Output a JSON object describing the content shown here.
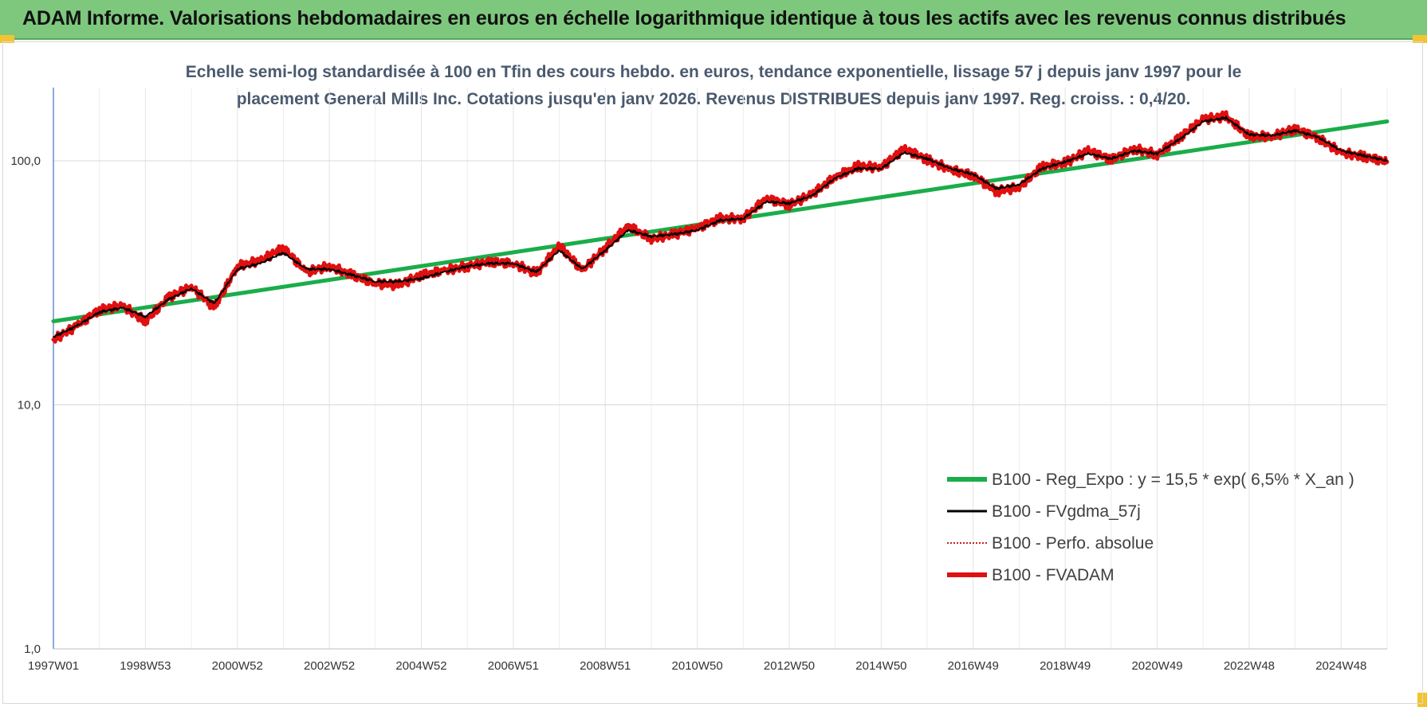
{
  "header": {
    "title": "ADAM Informe. Valorisations hebdomadaires en euros en échelle logarithmique identique à tous les actifs avec les revenus connus distribués"
  },
  "chart_data": {
    "type": "line",
    "title_line1": "Echelle semi-log standardisée à 100 en Tfin des cours hebdo. en euros, tendance exponentielle, lissage 57 j depuis janv 1997 pour le",
    "title_line2": "placement General Mills Inc. Cotations jusqu'en janv 2026. Revenus DISTRIBUES depuis janv 1997. Reg. croiss. : 0,4/20.",
    "y_scale": "log",
    "ylim": [
      1,
      190
    ],
    "y_ticks": [
      {
        "value": 100,
        "label": "100,0"
      },
      {
        "value": 10,
        "label": "10,0"
      },
      {
        "value": 1,
        "label": "1,0"
      }
    ],
    "xlim": [
      1997.0,
      2026.0
    ],
    "x_ticks": [
      {
        "value": 1997.0,
        "label": "1997W01"
      },
      {
        "value": 1999.0,
        "label": "1998W53"
      },
      {
        "value": 2001.0,
        "label": "2000W52"
      },
      {
        "value": 2003.0,
        "label": "2002W52"
      },
      {
        "value": 2005.0,
        "label": "2004W52"
      },
      {
        "value": 2007.0,
        "label": "2006W51"
      },
      {
        "value": 2009.0,
        "label": "2008W51"
      },
      {
        "value": 2011.0,
        "label": "2010W50"
      },
      {
        "value": 2013.0,
        "label": "2012W50"
      },
      {
        "value": 2015.0,
        "label": "2014W50"
      },
      {
        "value": 2017.0,
        "label": "2016W49"
      },
      {
        "value": 2019.0,
        "label": "2018W49"
      },
      {
        "value": 2021.0,
        "label": "2020W49"
      },
      {
        "value": 2023.0,
        "label": "2022W48"
      },
      {
        "value": 2025.0,
        "label": "2024W48"
      }
    ],
    "grid": true,
    "legend_position": "lower-right",
    "series": [
      {
        "name": "B100 - Reg_Expo : y = 15,5 * exp( 6,5% *  X_an )",
        "color": "#1aad4a",
        "style": "thick",
        "x": [
          1997.0,
          2026.0
        ],
        "y": [
          22,
          145
        ]
      },
      {
        "name": "B100 - FVgdma_57j",
        "color": "#000000",
        "style": "thin",
        "x": [
          1997.0,
          1997.5,
          1998.0,
          1998.5,
          1999.0,
          1999.5,
          2000.0,
          2000.5,
          2001.0,
          2001.5,
          2002.0,
          2002.5,
          2003.0,
          2003.5,
          2004.0,
          2004.5,
          2005.0,
          2005.5,
          2006.0,
          2006.5,
          2007.0,
          2007.5,
          2008.0,
          2008.5,
          2009.0,
          2009.5,
          2010.0,
          2010.5,
          2011.0,
          2011.5,
          2012.0,
          2012.5,
          2013.0,
          2013.5,
          2014.0,
          2014.5,
          2015.0,
          2015.5,
          2016.0,
          2016.5,
          2017.0,
          2017.5,
          2018.0,
          2018.5,
          2019.0,
          2019.5,
          2020.0,
          2020.5,
          2021.0,
          2021.5,
          2022.0,
          2022.5,
          2023.0,
          2023.5,
          2024.0,
          2024.5,
          2025.0,
          2025.5,
          2026.0
        ],
        "y": [
          19,
          21,
          24,
          25,
          23,
          27,
          30,
          26,
          36,
          38,
          42,
          36,
          36,
          34,
          32,
          32,
          33,
          35,
          37,
          38,
          38,
          35,
          43,
          36,
          43,
          52,
          49,
          50,
          52,
          57,
          58,
          68,
          67,
          72,
          85,
          93,
          93,
          108,
          102,
          93,
          88,
          77,
          80,
          93,
          99,
          107,
          102,
          110,
          107,
          123,
          145,
          150,
          128,
          127,
          133,
          125,
          110,
          105,
          100
        ]
      },
      {
        "name": "B100 - Perfo. absolue",
        "color": "#c00000",
        "style": "dotted",
        "x": [],
        "y": []
      },
      {
        "name": "B100 - FVADAM",
        "color": "#e01010",
        "style": "thick",
        "x": [
          1997.0,
          1997.5,
          1998.0,
          1998.5,
          1999.0,
          1999.5,
          2000.0,
          2000.5,
          2001.0,
          2001.5,
          2002.0,
          2002.5,
          2003.0,
          2003.5,
          2004.0,
          2004.5,
          2005.0,
          2005.5,
          2006.0,
          2006.5,
          2007.0,
          2007.5,
          2008.0,
          2008.5,
          2009.0,
          2009.5,
          2010.0,
          2010.5,
          2011.0,
          2011.5,
          2012.0,
          2012.5,
          2013.0,
          2013.5,
          2014.0,
          2014.5,
          2015.0,
          2015.5,
          2016.0,
          2016.5,
          2017.0,
          2017.5,
          2018.0,
          2018.5,
          2019.0,
          2019.5,
          2020.0,
          2020.5,
          2021.0,
          2021.5,
          2022.0,
          2022.5,
          2023.0,
          2023.5,
          2024.0,
          2024.5,
          2025.0,
          2025.5,
          2026.0
        ],
        "y": [
          18.5,
          21,
          24.5,
          25.5,
          22,
          27.5,
          30.5,
          25,
          37,
          39,
          44,
          35,
          37,
          34,
          31.5,
          31,
          34,
          35.5,
          37,
          38.5,
          38,
          34.5,
          45,
          35.5,
          44,
          54,
          48,
          50,
          53,
          58,
          58,
          70,
          66,
          73,
          86,
          95,
          94,
          112,
          101,
          92,
          87,
          75,
          78,
          95,
          98,
          110,
          101,
          112,
          106,
          125,
          148,
          152,
          126,
          126,
          135,
          124,
          108,
          104,
          99
        ]
      }
    ]
  }
}
